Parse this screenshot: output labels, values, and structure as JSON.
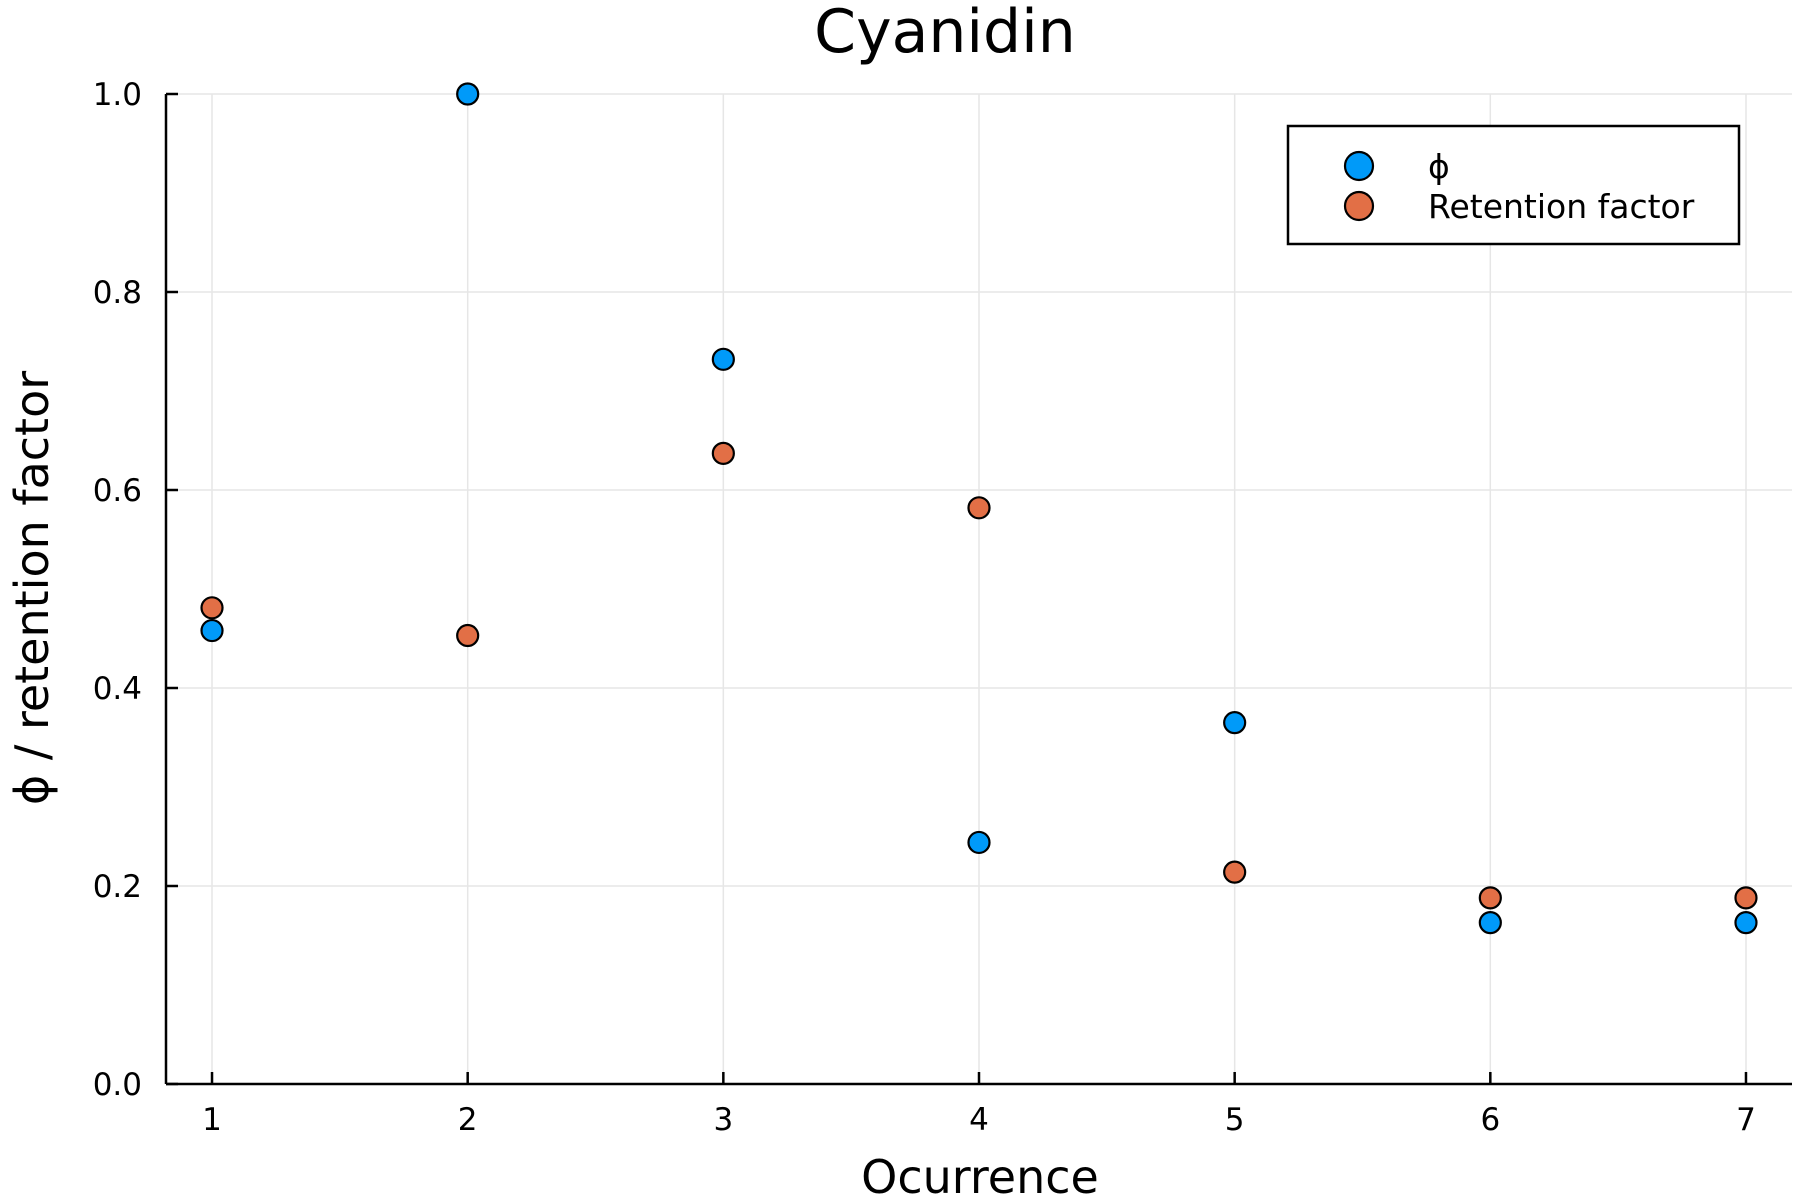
{
  "chart_data": {
    "type": "scatter",
    "title": "Cyanidin",
    "xlabel": "Ocurrence",
    "ylabel": "ϕ / retention factor",
    "xlim": [
      0.82,
      7.18
    ],
    "ylim": [
      0,
      1
    ],
    "x_ticks": [
      "1",
      "2",
      "3",
      "4",
      "5",
      "6",
      "7"
    ],
    "y_ticks": [
      "0.0",
      "0.2",
      "0.4",
      "0.6",
      "0.8",
      "1.0"
    ],
    "grid": true,
    "legend_position": "top-right",
    "series": [
      {
        "name": "ϕ",
        "color": "#009af9",
        "x": [
          1,
          2,
          3,
          4,
          5,
          6,
          7
        ],
        "y": [
          0.458,
          1.0,
          0.732,
          0.244,
          0.365,
          0.163,
          0.163
        ]
      },
      {
        "name": "Retention factor",
        "color": "#e26f46",
        "x": [
          1,
          2,
          3,
          4,
          5,
          6,
          7
        ],
        "y": [
          0.481,
          0.453,
          0.637,
          0.582,
          0.214,
          0.188,
          0.188
        ]
      }
    ]
  }
}
